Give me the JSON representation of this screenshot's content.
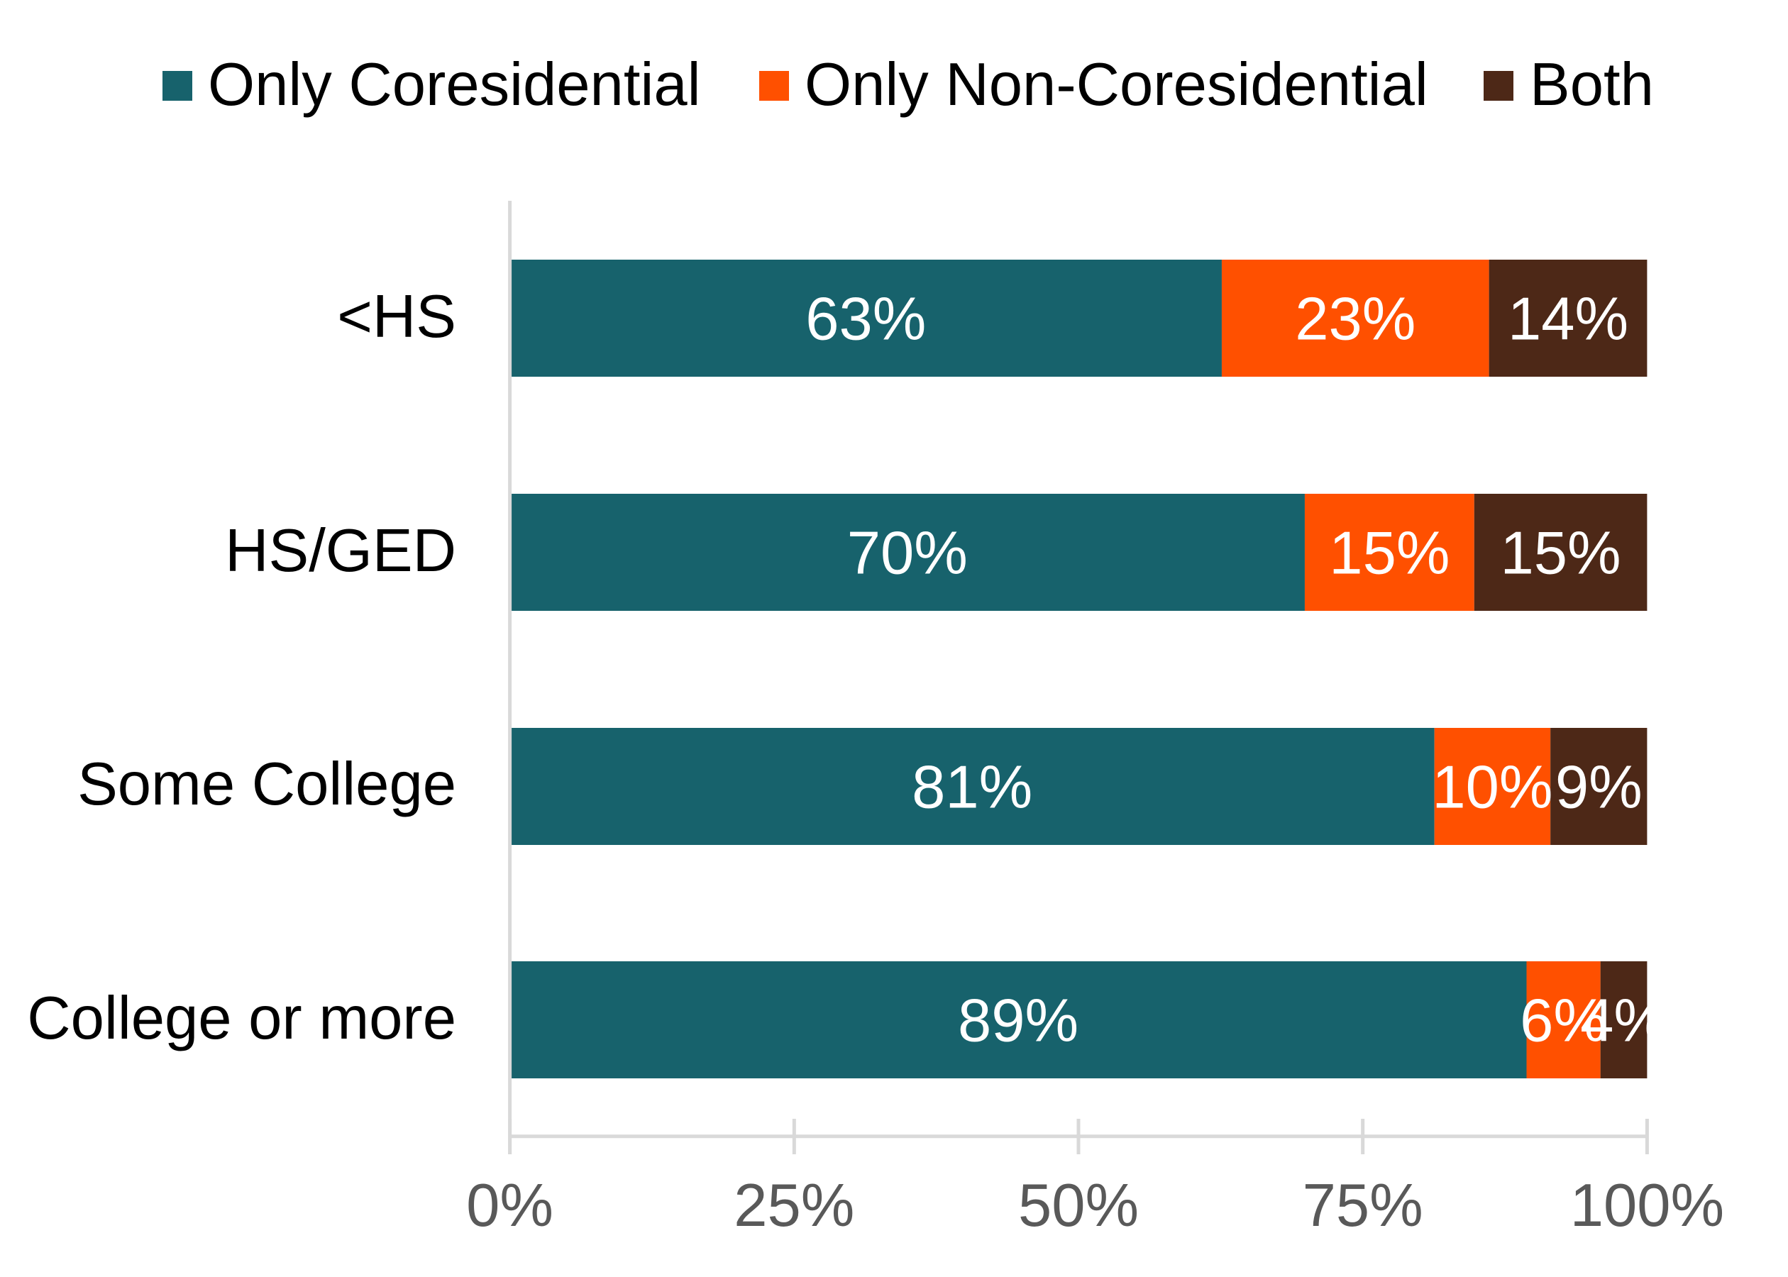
{
  "chart_data": {
    "type": "bar",
    "orientation": "horizontal",
    "stacked": "percent",
    "title": "",
    "xlabel": "",
    "ylabel": "",
    "xlim": [
      0,
      100
    ],
    "x_ticks": [
      "0%",
      "25%",
      "50%",
      "75%",
      "100%"
    ],
    "x_tick_values": [
      0,
      25,
      50,
      75,
      100
    ],
    "grid": false,
    "legend_position": "top",
    "categories": [
      "<HS",
      "HS/GED",
      "Some College",
      "College or more"
    ],
    "series": [
      {
        "name": "Only Coresidential",
        "color": "#17626C",
        "values": [
          62.6,
          69.9,
          81.3,
          89.4
        ],
        "labels": [
          "63%",
          "70%",
          "81%",
          "89%"
        ]
      },
      {
        "name": "Only Non-Coresidential",
        "color": "#FF5000",
        "values": [
          23.5,
          14.9,
          10.2,
          6.5
        ],
        "labels": [
          "23%",
          "15%",
          "10%",
          "6%"
        ]
      },
      {
        "name": "Both",
        "color": "#4D2817",
        "values": [
          13.9,
          15.2,
          8.5,
          4.1
        ],
        "labels": [
          "14%",
          "15%",
          "9%",
          "4%"
        ]
      }
    ]
  }
}
